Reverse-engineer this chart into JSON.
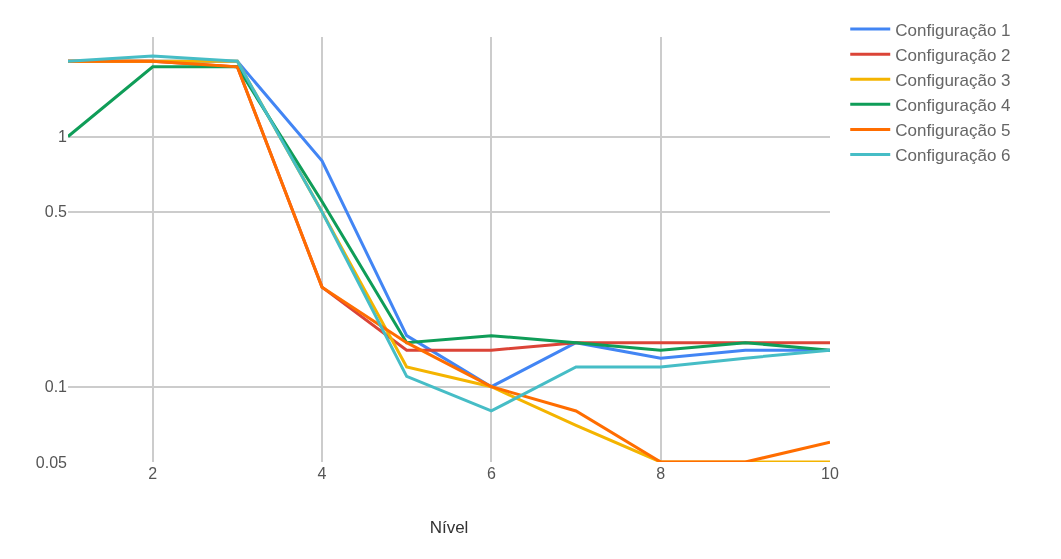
{
  "chart_data": {
    "type": "line",
    "xlabel": "Nível",
    "x": [
      1,
      2,
      3,
      4,
      5,
      6,
      7,
      8,
      9,
      10
    ],
    "series": [
      {
        "name": "Configuração 1",
        "color": "#4285f4",
        "values": [
          2.0,
          2.0,
          2.0,
          0.8,
          0.16,
          0.1,
          0.15,
          0.13,
          0.14,
          0.14
        ]
      },
      {
        "name": "Configuração 2",
        "color": "#db4437",
        "values": [
          2.0,
          2.0,
          1.9,
          0.25,
          0.14,
          0.14,
          0.15,
          0.15,
          0.15,
          0.15
        ]
      },
      {
        "name": "Configuração 3",
        "color": "#f4b400",
        "values": [
          2.0,
          2.0,
          2.0,
          0.5,
          0.12,
          0.1,
          0.07,
          0.05,
          0.05,
          0.05
        ]
      },
      {
        "name": "Configuração 4",
        "color": "#0f9d58",
        "values": [
          1.0,
          1.9,
          1.9,
          0.55,
          0.15,
          0.16,
          0.15,
          0.14,
          0.15,
          0.14
        ]
      },
      {
        "name": "Configuração 5",
        "color": "#ff6d00",
        "values": [
          2.0,
          2.0,
          1.9,
          0.25,
          0.15,
          0.1,
          0.08,
          0.05,
          0.05,
          0.06
        ]
      },
      {
        "name": "Configuração 6",
        "color": "#46bdc6",
        "values": [
          2.0,
          2.1,
          2.0,
          0.5,
          0.11,
          0.08,
          0.12,
          0.12,
          0.13,
          0.14
        ]
      }
    ],
    "xlim": [
      1,
      10
    ],
    "xticks": [
      2,
      4,
      6,
      8,
      10
    ],
    "ylim": [
      0.05,
      2.5
    ],
    "yticks": [
      0.05,
      0.1,
      0.5,
      1
    ],
    "log": "y",
    "grid": true,
    "legend": "top right",
    "marker": "none",
    "line_style": "solid"
  }
}
